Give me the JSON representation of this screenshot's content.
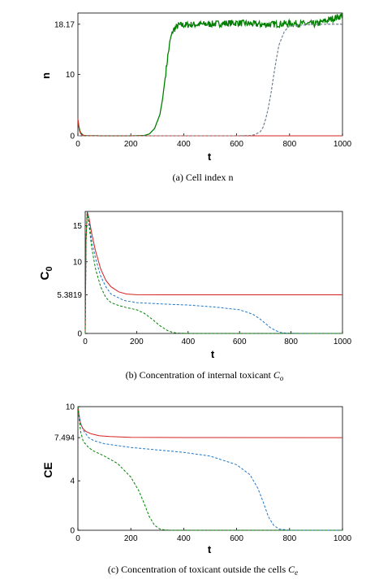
{
  "chart_data": [
    {
      "type": "line",
      "caption": "(a) Cell index n",
      "xlabel": "t",
      "ylabel": "n",
      "xlim": [
        0,
        1000
      ],
      "ylim": [
        0,
        20
      ],
      "xticks": [
        "0",
        "200",
        "400",
        "600",
        "800",
        "1000"
      ],
      "yticks": [
        "0",
        "10",
        "18.17"
      ],
      "series": [
        {
          "color": "#008000",
          "style": "solid",
          "noisy": true,
          "x": [
            0,
            5,
            10,
            20,
            30,
            100,
            200,
            250,
            270,
            290,
            310,
            320,
            330,
            340,
            350,
            360,
            380,
            420,
            500,
            600,
            700,
            800,
            900,
            1000
          ],
          "y": [
            2.5,
            1.2,
            0.5,
            0.1,
            0.02,
            0,
            0,
            0.05,
            0.3,
            1.2,
            3.5,
            6,
            9.5,
            13,
            15.8,
            17.2,
            18,
            18.1,
            18.2,
            18.4,
            18.1,
            18.3,
            18.2,
            19.6
          ]
        },
        {
          "color": "#1f77c8",
          "style": "dashed",
          "x": [
            0,
            600,
            650,
            670,
            690,
            700,
            710,
            720,
            730,
            740,
            750,
            760,
            780,
            800,
            900,
            1000
          ],
          "y": [
            0,
            0,
            0.05,
            0.2,
            0.7,
            1.4,
            2.8,
            4.6,
            7,
            9.8,
            12.5,
            14.8,
            17,
            17.9,
            18.17,
            18.17
          ]
        },
        {
          "color": "#d62020",
          "style": "solid",
          "x": [
            0,
            3,
            6,
            10,
            15,
            25,
            40,
            80,
            200,
            1000
          ],
          "y": [
            2.8,
            1.6,
            0.8,
            0.35,
            0.15,
            0.05,
            0.02,
            0,
            0,
            0
          ]
        },
        {
          "color": "#7f7f7f",
          "style": "dashed",
          "x": [
            0,
            600,
            650,
            670,
            690,
            700,
            710,
            720,
            730,
            740,
            750,
            760,
            780,
            800,
            900,
            1000
          ],
          "y": [
            0,
            0,
            0.05,
            0.2,
            0.7,
            1.4,
            2.8,
            4.6,
            7,
            9.8,
            12.5,
            14.8,
            17,
            17.9,
            18.17,
            18.17
          ]
        }
      ]
    },
    {
      "type": "line",
      "caption": "(b) Concentration of internal toxicant ",
      "caption_math": "C",
      "caption_sub": "o",
      "xlabel": "t",
      "ylabel": "C",
      "ylabel_sub": "0",
      "xlim": [
        0,
        1000
      ],
      "ylim": [
        0,
        17
      ],
      "xticks": [
        "0",
        "200",
        "400",
        "600",
        "800",
        "1000"
      ],
      "yticks": [
        "0",
        "5.3819",
        "10",
        "15"
      ],
      "series": [
        {
          "color": "#d62020",
          "style": "solid",
          "x": [
            0,
            3,
            8,
            15,
            25,
            40,
            60,
            80,
            100,
            130,
            160,
            200,
            300,
            1000
          ],
          "y": [
            0,
            13,
            17,
            16,
            14,
            11.5,
            9,
            7.4,
            6.5,
            5.8,
            5.5,
            5.4,
            5.38,
            5.38
          ]
        },
        {
          "color": "#1f77c8",
          "style": "dashed",
          "x": [
            0,
            3,
            8,
            15,
            25,
            40,
            60,
            80,
            100,
            150,
            200,
            300,
            400,
            500,
            600,
            650,
            680,
            700,
            720,
            740,
            760,
            780,
            800,
            850,
            1000
          ],
          "y": [
            0,
            13,
            17,
            15.5,
            13,
            10.5,
            8,
            6.5,
            5.5,
            4.6,
            4.3,
            4.1,
            3.95,
            3.7,
            3.3,
            2.7,
            2,
            1.4,
            0.8,
            0.4,
            0.15,
            0.05,
            0.02,
            0,
            0
          ]
        },
        {
          "color": "#008000",
          "style": "dashed",
          "x": [
            0,
            3,
            8,
            15,
            25,
            40,
            60,
            80,
            100,
            130,
            160,
            200,
            230,
            260,
            290,
            320,
            340,
            360,
            380,
            400,
            1000
          ],
          "y": [
            0,
            13,
            17,
            15,
            12,
            9,
            6.5,
            5,
            4.3,
            3.9,
            3.6,
            3.3,
            2.8,
            2,
            1.1,
            0.4,
            0.15,
            0.05,
            0.02,
            0,
            0
          ]
        }
      ]
    },
    {
      "type": "line",
      "caption": "(c) Concentration of toxicant outside the cells ",
      "caption_math": "C",
      "caption_sub": "e",
      "xlabel": "t",
      "ylabel": "CE",
      "xlim": [
        0,
        1000
      ],
      "ylim": [
        0,
        10
      ],
      "xticks": [
        "0",
        "200",
        "400",
        "600",
        "800",
        "1000"
      ],
      "yticks": [
        "0",
        "4",
        "7.494",
        "10"
      ],
      "series": [
        {
          "color": "#d62020",
          "style": "solid",
          "x": [
            0,
            5,
            10,
            20,
            30,
            50,
            80,
            120,
            200,
            400,
            1000
          ],
          "y": [
            10,
            9.2,
            8.6,
            8.2,
            8,
            7.8,
            7.65,
            7.58,
            7.52,
            7.5,
            7.494
          ]
        },
        {
          "color": "#1f77c8",
          "style": "dashed",
          "x": [
            0,
            5,
            10,
            20,
            40,
            60,
            100,
            200,
            300,
            400,
            500,
            600,
            650,
            680,
            700,
            720,
            740,
            760,
            800,
            1000
          ],
          "y": [
            10,
            9.3,
            8.7,
            8.1,
            7.5,
            7.25,
            7,
            6.7,
            6.5,
            6.3,
            6,
            5.3,
            4.5,
            3.4,
            2.3,
            1.1,
            0.4,
            0.1,
            0,
            0
          ]
        },
        {
          "color": "#008000",
          "style": "dashed",
          "x": [
            0,
            5,
            10,
            20,
            40,
            60,
            100,
            150,
            200,
            230,
            250,
            270,
            290,
            310,
            330,
            350,
            1000
          ],
          "y": [
            10,
            9,
            8,
            7.2,
            6.7,
            6.4,
            6,
            5.4,
            4.3,
            3.2,
            2.2,
            1.1,
            0.4,
            0.1,
            0.02,
            0,
            0
          ]
        }
      ]
    }
  ]
}
